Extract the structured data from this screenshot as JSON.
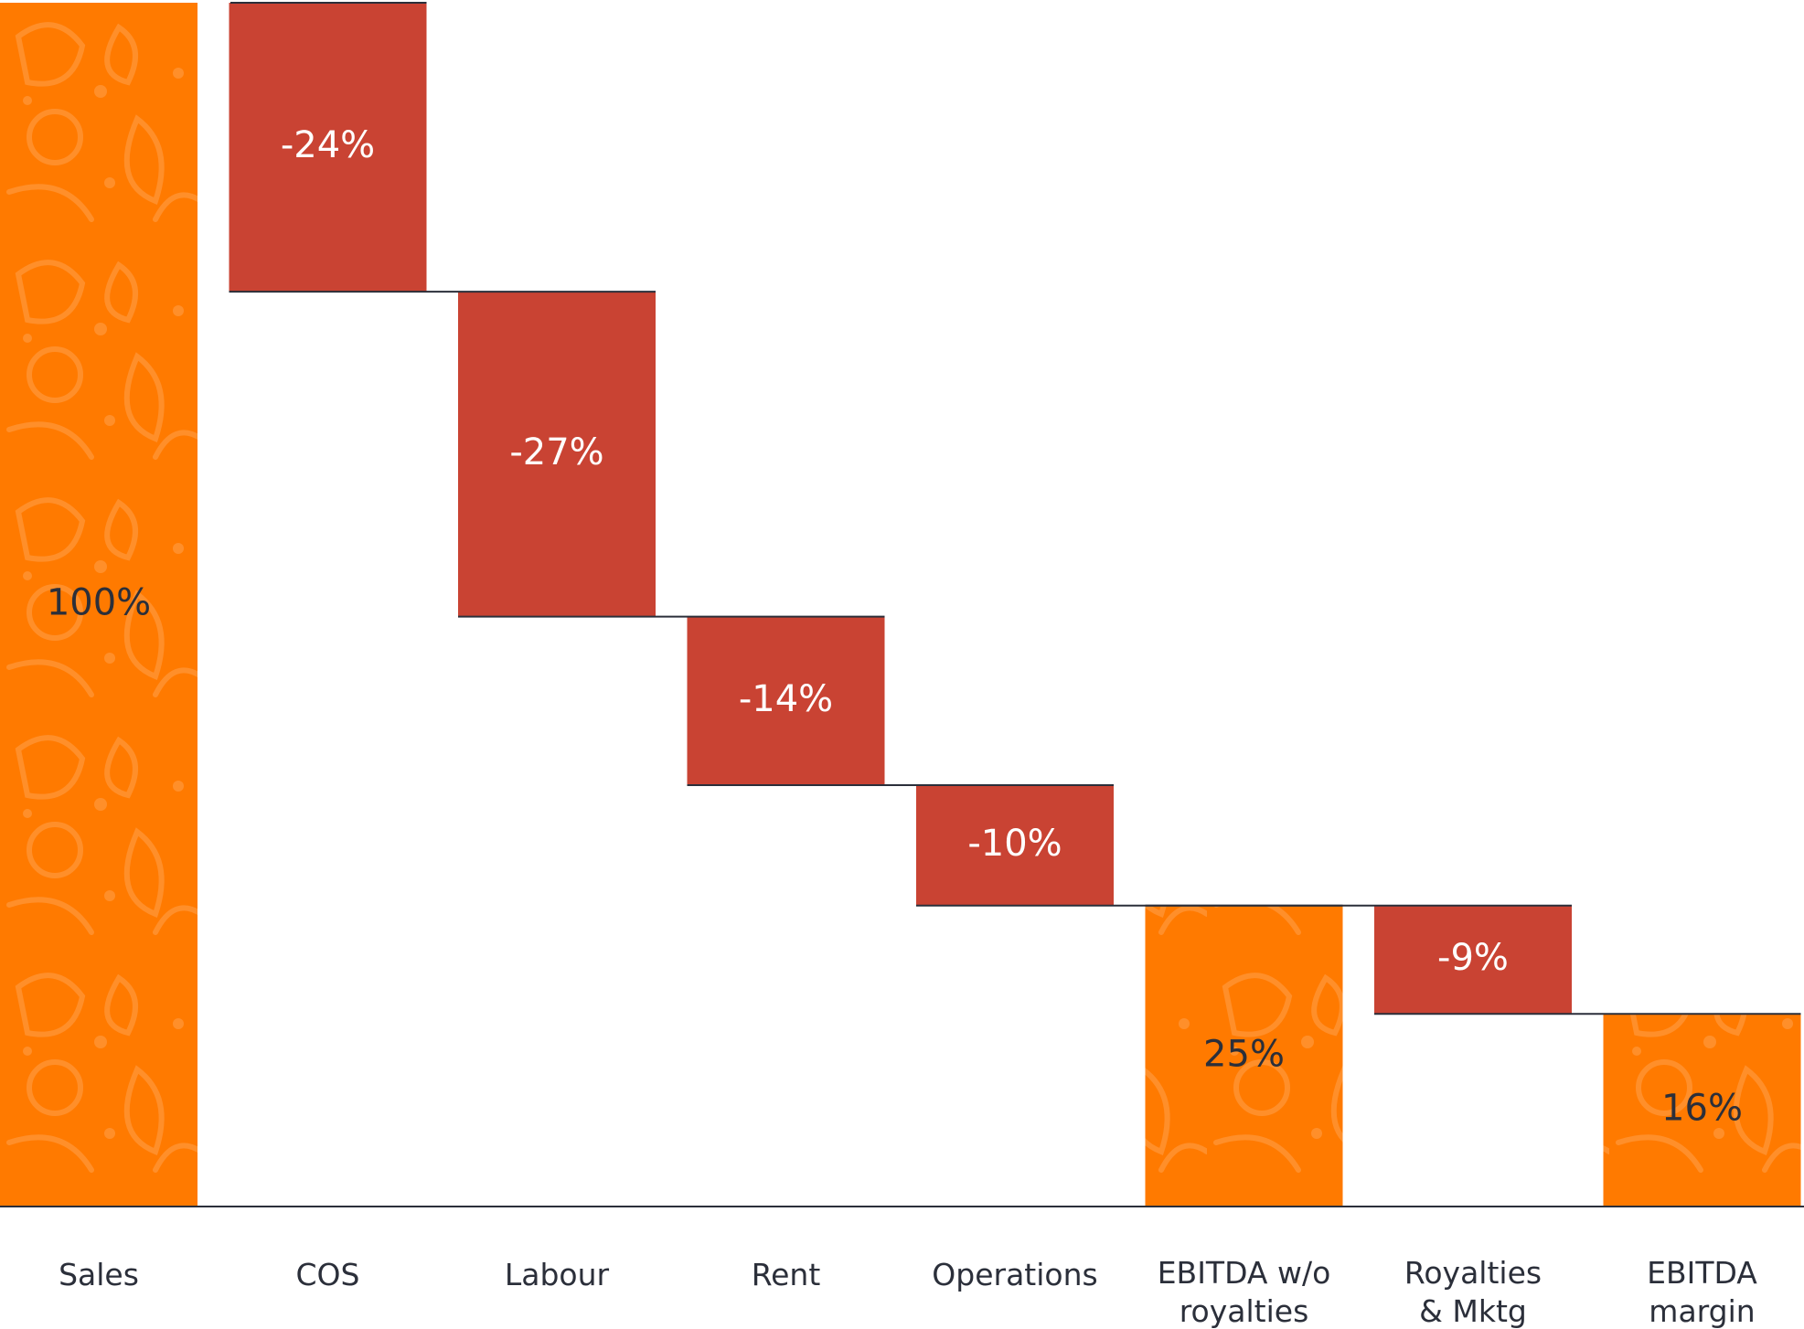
{
  "chart_data": {
    "type": "bar",
    "subtype": "waterfall",
    "title": "",
    "xlabel": "",
    "ylabel": "",
    "ylim": [
      0,
      100
    ],
    "grid": false,
    "legend": "none",
    "categories": [
      [
        "Sales"
      ],
      [
        "COS"
      ],
      [
        "Labour"
      ],
      [
        "Rent"
      ],
      [
        "Operations"
      ],
      [
        "EBITDA w/o",
        "royalties"
      ],
      [
        "Royalties",
        "& Mktg"
      ],
      [
        "EBITDA",
        "margin"
      ]
    ],
    "values": [
      100,
      -24,
      -27,
      -14,
      -10,
      25,
      -9,
      16
    ],
    "value_labels": [
      "100%",
      "-24%",
      "-27%",
      "-14%",
      "-10%",
      "25%",
      "-9%",
      "16%"
    ],
    "bar_kind": [
      "total",
      "delta",
      "delta",
      "delta",
      "delta",
      "total",
      "delta",
      "total"
    ],
    "colors": {
      "total": "#ff7a00",
      "delta": "#c94333",
      "total_pattern": "#ffa04d",
      "total_label": "#2b2f3a",
      "delta_label": "#ffffff",
      "connector": "#2b2f3a"
    }
  }
}
